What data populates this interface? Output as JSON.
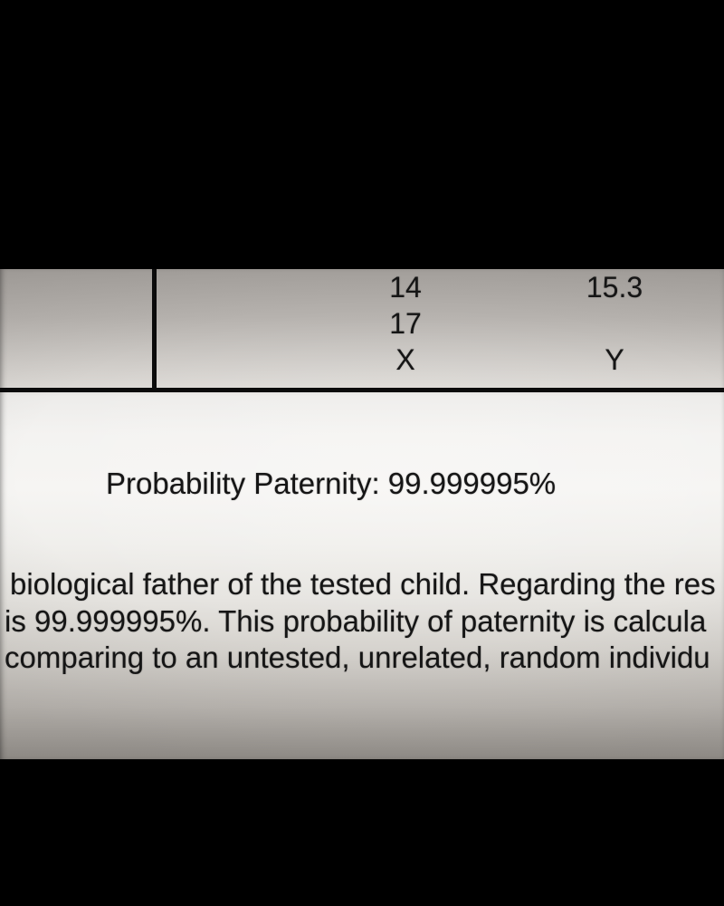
{
  "frame": {
    "background_color": "#000000"
  },
  "document": {
    "paper_light_color": "#f6f5f3",
    "paper_dark_color": "#94908b",
    "ink_color": "#151515",
    "rule_color": "#0b0b0b",
    "allele_table": {
      "rows": [
        [
          "14",
          "15.3"
        ],
        [
          "17",
          ""
        ],
        [
          "X",
          "Y"
        ]
      ]
    },
    "probability_heading": "Probability Paternity: 99.999995%",
    "paragraph_lines": [
      "biological father of the tested child. Regarding the res",
      "is 99.999995%. This probability of paternity is calcula",
      "comparing to an untested, unrelated, random individu"
    ]
  }
}
